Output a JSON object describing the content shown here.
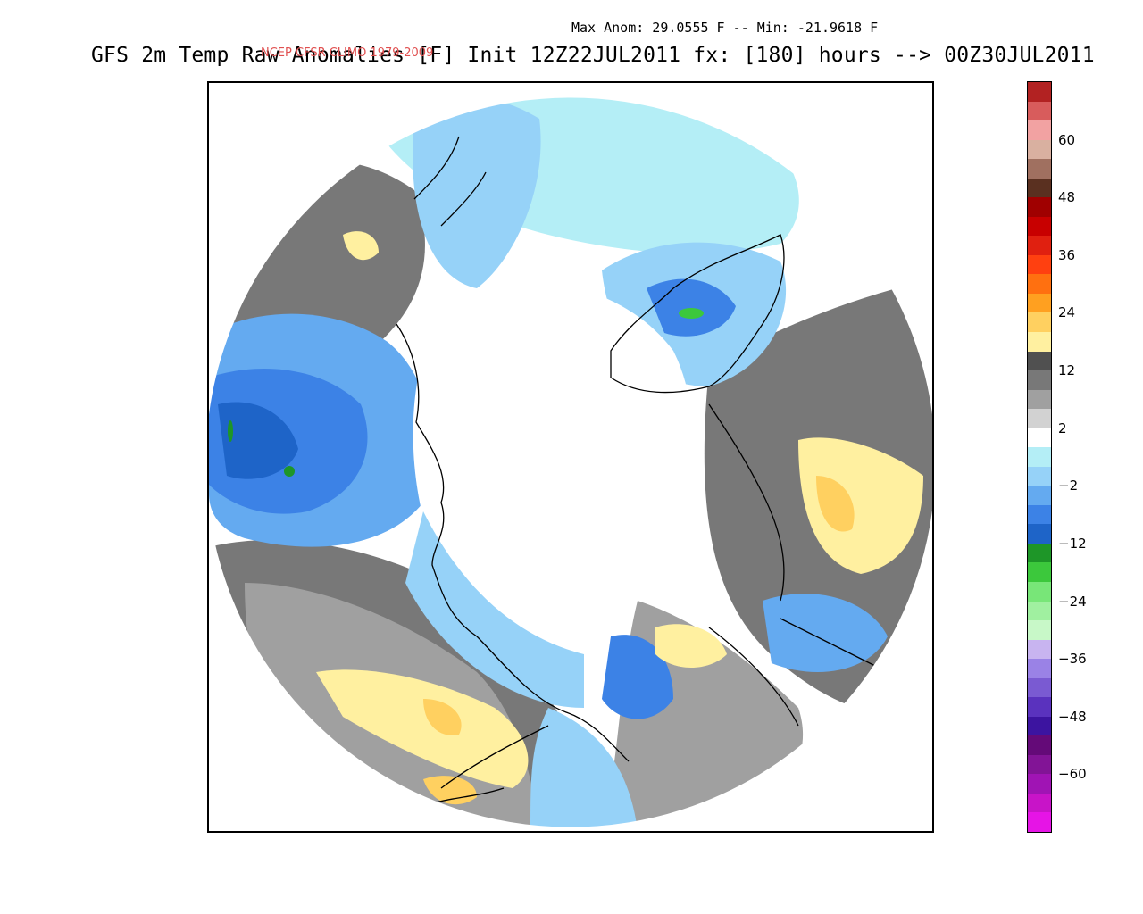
{
  "header": {
    "anom_line": "Max Anom: 29.0555 F -- Min: -21.9618 F",
    "title": "GFS 2m Temp Raw Anomalies [F] Init 12Z22JUL2011 fx: [180] hours --> 00Z30JUL2011",
    "overlay_label": "NCEP CFSR CLIMO 1979-2009"
  },
  "map": {
    "projection": "polar-stereographic-north",
    "region": "Northern Hemisphere high latitudes"
  },
  "colorbar": {
    "colors": [
      "#b22222",
      "#d85c5c",
      "#f2a2a2",
      "#d9b0a0",
      "#a07060",
      "#5a3020",
      "#a00000",
      "#c80000",
      "#e02010",
      "#ff4010",
      "#ff7010",
      "#ffa020",
      "#ffd060",
      "#fff0a0",
      "#505050",
      "#787878",
      "#a0a0a0",
      "#d2d2d2",
      "#ffffff",
      "#b4eef6",
      "#96d2f8",
      "#64aaf0",
      "#3c82e6",
      "#1e64c8",
      "#1e9628",
      "#3cc83c",
      "#78e678",
      "#a0f0a0",
      "#c8f8c8",
      "#c8b4f0",
      "#9a82e6",
      "#7a5ad2",
      "#5a32be",
      "#3c14a0",
      "#640a78",
      "#821496",
      "#a014b4",
      "#c814c8",
      "#e614e6"
    ],
    "labels": [
      {
        "text": "60",
        "after_index": 2
      },
      {
        "text": "48",
        "after_index": 5
      },
      {
        "text": "36",
        "after_index": 8
      },
      {
        "text": "24",
        "after_index": 11
      },
      {
        "text": "12",
        "after_index": 14
      },
      {
        "text": "2",
        "after_index": 17
      },
      {
        "text": "−2",
        "after_index": 20
      },
      {
        "text": "−12",
        "after_index": 23
      },
      {
        "text": "−24",
        "after_index": 26
      },
      {
        "text": "−36",
        "after_index": 29
      },
      {
        "text": "−48",
        "after_index": 32
      },
      {
        "text": "−60",
        "after_index": 35
      }
    ]
  }
}
